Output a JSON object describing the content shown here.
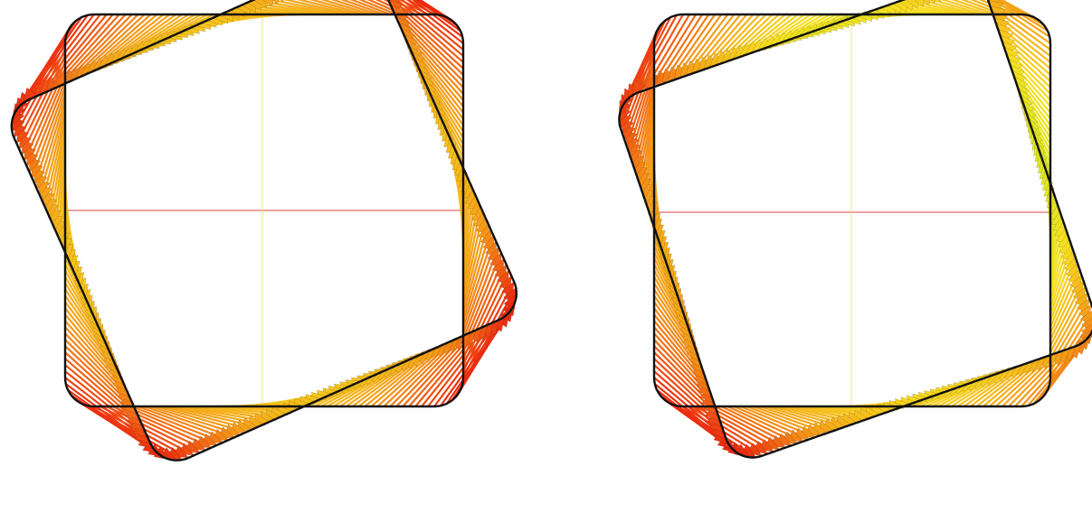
{
  "figure": {
    "panels": [
      {
        "id": "left",
        "description_free": true,
        "original_shape": "rounded-square",
        "rotation_deg": -24,
        "displacement_field": "rigid-rotation",
        "colors": {
          "outline": "#111111",
          "x_axis": "#e04040",
          "y_axis": "#f2e28a"
        },
        "colormap": [
          "#2ec8d8",
          "#27d67a",
          "#54e030",
          "#c8ee2a",
          "#f6e020",
          "#f59a18",
          "#ec2a10"
        ]
      },
      {
        "id": "right",
        "original_shape": "rounded-square",
        "rotation_deg": -22,
        "displacement_field": "rotation-with-shear",
        "colors": {
          "outline": "#111111",
          "x_axis": "#e04040",
          "y_axis": "#f2e28a"
        },
        "colormap": [
          "#2ec8d8",
          "#27d67a",
          "#54e030",
          "#c8ee2a",
          "#f6e020",
          "#f59a18",
          "#ec2a10"
        ]
      }
    ]
  }
}
